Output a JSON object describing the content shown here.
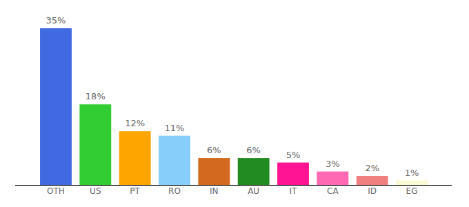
{
  "chart_data": {
    "type": "bar",
    "categories": [
      "OTH",
      "US",
      "PT",
      "RO",
      "IN",
      "AU",
      "IT",
      "CA",
      "ID",
      "EG"
    ],
    "values": [
      35,
      18,
      12,
      11,
      6,
      6,
      5,
      3,
      2,
      1
    ],
    "value_labels": [
      "35%",
      "18%",
      "12%",
      "11%",
      "6%",
      "6%",
      "5%",
      "3%",
      "2%",
      "1%"
    ],
    "colors": [
      "#4169e1",
      "#32cd32",
      "#ffa500",
      "#87cefa",
      "#d2691e",
      "#228b22",
      "#ff1493",
      "#ff69b4",
      "#f08080",
      "#fafad2"
    ],
    "ylim": [
      0,
      35
    ],
    "data_labels": true,
    "tick_labels": "x"
  }
}
